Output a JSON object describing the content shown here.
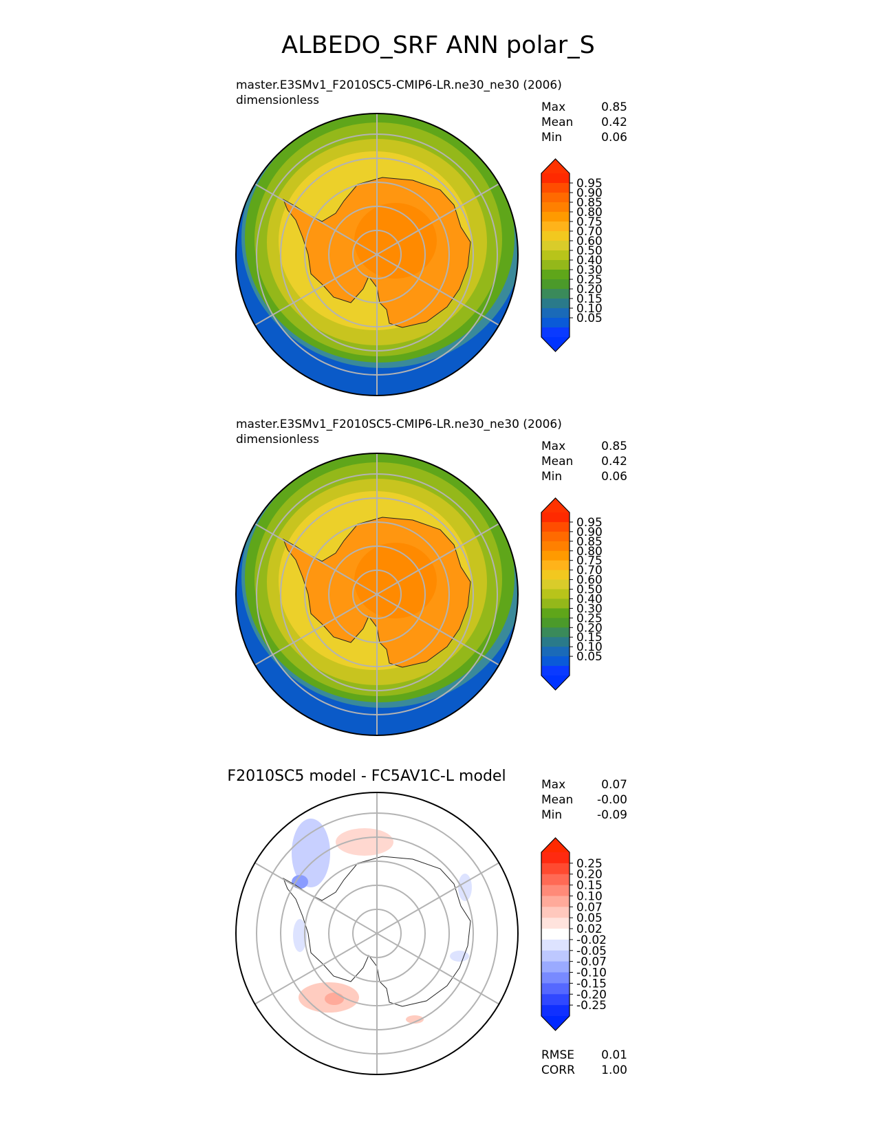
{
  "figure": {
    "title": "ALBEDO_SRF ANN polar_S"
  },
  "panels": [
    {
      "id": "test",
      "title": "master.E3SMv1_F2010SC5-CMIP6-LR.ne30_ne30 (2006)",
      "units": "dimensionless",
      "stats": [
        {
          "label": "Max",
          "value": "0.85"
        },
        {
          "label": "Mean",
          "value": "0.42"
        },
        {
          "label": "Min",
          "value": "0.06"
        }
      ],
      "colorbar": {
        "levels": [
          "0.95",
          "0.90",
          "0.85",
          "0.80",
          "0.75",
          "0.70",
          "0.60",
          "0.50",
          "0.40",
          "0.30",
          "0.25",
          "0.20",
          "0.15",
          "0.10",
          "0.05"
        ],
        "colors": [
          "#ff2a00",
          "#ff4d00",
          "#ff6a00",
          "#ff8000",
          "#ff9a00",
          "#ffb31a",
          "#f2c81f",
          "#d9cc2a",
          "#b8c41a",
          "#94b81a",
          "#5fa61a",
          "#4b9a2a",
          "#3a8a5a",
          "#2a7a8a",
          "#1a6ab8",
          "#0a5ad8",
          "#0a3aff"
        ],
        "max_color": "#ff3300",
        "min_color": "#0033ff"
      }
    },
    {
      "id": "reference",
      "title": "master.E3SMv1_F2010SC5-CMIP6-LR.ne30_ne30 (2006)",
      "units": "dimensionless",
      "stats": [
        {
          "label": "Max",
          "value": "0.85"
        },
        {
          "label": "Mean",
          "value": "0.42"
        },
        {
          "label": "Min",
          "value": "0.06"
        }
      ],
      "colorbar": {
        "levels": [
          "0.95",
          "0.90",
          "0.85",
          "0.80",
          "0.75",
          "0.70",
          "0.60",
          "0.50",
          "0.40",
          "0.30",
          "0.25",
          "0.20",
          "0.15",
          "0.10",
          "0.05"
        ],
        "colors": [
          "#ff2a00",
          "#ff4d00",
          "#ff6a00",
          "#ff8000",
          "#ff9a00",
          "#ffb31a",
          "#f2c81f",
          "#d9cc2a",
          "#b8c41a",
          "#94b81a",
          "#5fa61a",
          "#4b9a2a",
          "#3a8a5a",
          "#2a7a8a",
          "#1a6ab8",
          "#0a5ad8",
          "#0a3aff"
        ],
        "max_color": "#ff3300",
        "min_color": "#0033ff"
      }
    },
    {
      "id": "difference",
      "title": "F2010SC5 model - FC5AV1C-L model",
      "units": "",
      "stats": [
        {
          "label": "Max",
          "value": "0.07"
        },
        {
          "label": "Mean",
          "value": "-0.00"
        },
        {
          "label": "Min",
          "value": "-0.09"
        }
      ],
      "metrics": [
        {
          "label": "RMSE",
          "value": "0.01"
        },
        {
          "label": "CORR",
          "value": "1.00"
        }
      ],
      "colorbar": {
        "levels": [
          "0.25",
          "0.20",
          "0.15",
          "0.10",
          "0.07",
          "0.05",
          "0.02",
          "-0.02",
          "-0.05",
          "-0.07",
          "-0.10",
          "-0.15",
          "-0.20",
          "-0.25"
        ],
        "colors": [
          "#ff2a10",
          "#ff4a30",
          "#ff6a55",
          "#ff8a78",
          "#ffaa9a",
          "#ffc8bd",
          "#ffe3dd",
          "#ffffff",
          "#dde3ff",
          "#bdc8ff",
          "#9aaaff",
          "#788aff",
          "#5568ff",
          "#3048ff",
          "#1030ff"
        ],
        "max_color": "#ff2a00",
        "min_color": "#0028ff"
      }
    }
  ]
}
